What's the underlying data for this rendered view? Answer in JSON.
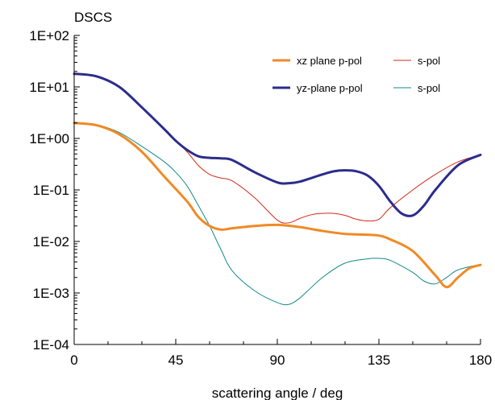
{
  "chart_data": {
    "type": "line",
    "ylabel": "DSCS",
    "xlabel": "scattering angle / deg",
    "xlim": [
      0,
      180
    ],
    "ylim": [
      0.0001,
      100
    ],
    "y_scale": "log",
    "grid": false,
    "legend_position": "top-right",
    "x_ticks": [
      0,
      45,
      90,
      135,
      180
    ],
    "x_tick_labels": [
      "0",
      "45",
      "90",
      "135",
      "180"
    ],
    "y_ticks": [
      0.0001,
      0.001,
      0.01,
      0.1,
      1,
      10,
      100
    ],
    "y_tick_labels": [
      "1E-04",
      "1E-03",
      "1E-02",
      "1E-01",
      "1E+00",
      "1E+01",
      "1E+02"
    ],
    "series": [
      {
        "name": "xz plane p-pol",
        "color": "#f08a24",
        "width": 3,
        "x": [
          0,
          10,
          20,
          30,
          40,
          50,
          55,
          60,
          65,
          70,
          80,
          90,
          100,
          110,
          120,
          130,
          135,
          140,
          150,
          160,
          165,
          170,
          175,
          180
        ],
        "y": [
          2.0,
          1.8,
          1.2,
          0.55,
          0.18,
          0.06,
          0.03,
          0.02,
          0.017,
          0.018,
          0.02,
          0.021,
          0.019,
          0.016,
          0.014,
          0.0135,
          0.013,
          0.011,
          0.0065,
          0.0022,
          0.0013,
          0.002,
          0.003,
          0.0035
        ]
      },
      {
        "name": "s-pol",
        "color": "#d42a1a",
        "width": 1,
        "x": [
          0,
          10,
          20,
          30,
          40,
          45,
          50,
          55,
          60,
          65,
          70,
          80,
          90,
          95,
          100,
          105,
          110,
          115,
          120,
          125,
          130,
          135,
          140,
          150,
          160,
          170,
          180
        ],
        "y": [
          18,
          16,
          10,
          4,
          1.5,
          0.9,
          0.55,
          0.3,
          0.2,
          0.17,
          0.15,
          0.07,
          0.026,
          0.023,
          0.028,
          0.033,
          0.035,
          0.035,
          0.032,
          0.027,
          0.025,
          0.027,
          0.045,
          0.1,
          0.2,
          0.35,
          0.48
        ]
      },
      {
        "name": "yz-plane p-pol",
        "color": "#2c2c8c",
        "width": 3,
        "x": [
          0,
          10,
          20,
          30,
          40,
          45,
          50,
          55,
          60,
          65,
          70,
          80,
          90,
          95,
          100,
          110,
          115,
          120,
          125,
          130,
          135,
          140,
          145,
          150,
          155,
          160,
          170,
          180
        ],
        "y": [
          18,
          16,
          10,
          4,
          1.5,
          0.9,
          0.6,
          0.45,
          0.42,
          0.41,
          0.38,
          0.22,
          0.14,
          0.135,
          0.145,
          0.2,
          0.23,
          0.24,
          0.23,
          0.19,
          0.12,
          0.06,
          0.035,
          0.032,
          0.05,
          0.1,
          0.3,
          0.48
        ]
      },
      {
        "name": "s-pol",
        "color": "#148a8a",
        "width": 1,
        "x": [
          0,
          10,
          20,
          30,
          40,
          45,
          50,
          55,
          60,
          65,
          70,
          80,
          90,
          95,
          100,
          110,
          120,
          130,
          135,
          140,
          150,
          155,
          160,
          165,
          170,
          180
        ],
        "y": [
          2.0,
          1.85,
          1.3,
          0.7,
          0.35,
          0.22,
          0.12,
          0.05,
          0.02,
          0.007,
          0.0027,
          0.0011,
          0.00065,
          0.0006,
          0.0008,
          0.002,
          0.0038,
          0.0046,
          0.0047,
          0.0043,
          0.0025,
          0.0017,
          0.0015,
          0.002,
          0.0028,
          0.0036
        ]
      }
    ]
  }
}
